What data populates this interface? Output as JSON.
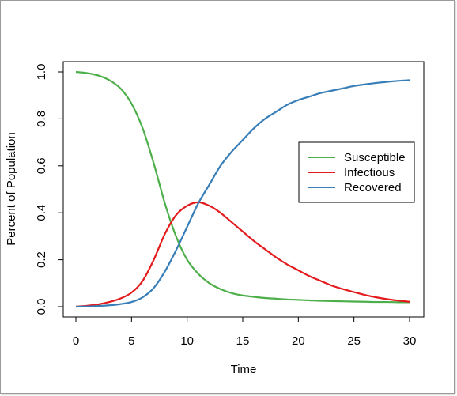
{
  "chart_data": {
    "type": "line",
    "xlabel": "Time",
    "ylabel": "Percent of Population",
    "xlim": [
      0,
      30
    ],
    "ylim": [
      0.0,
      1.0
    ],
    "x_ticks": [
      "0",
      "5",
      "10",
      "15",
      "20",
      "25",
      "30"
    ],
    "y_ticks": [
      "0.0",
      "0.2",
      "0.4",
      "0.6",
      "0.8",
      "1.0"
    ],
    "grid": false,
    "legend_position": "right",
    "x": [
      0,
      1,
      2,
      3,
      4,
      5,
      6,
      7,
      8,
      9,
      10,
      11,
      12,
      13,
      14,
      15,
      16,
      17,
      18,
      19,
      20,
      21,
      22,
      23,
      24,
      25,
      26,
      27,
      28,
      29,
      30
    ],
    "series": [
      {
        "name": "Susceptible",
        "color": "#4daf4a",
        "values": [
          1.0,
          0.995,
          0.985,
          0.965,
          0.93,
          0.865,
          0.76,
          0.61,
          0.44,
          0.3,
          0.2,
          0.14,
          0.1,
          0.075,
          0.058,
          0.048,
          0.042,
          0.037,
          0.034,
          0.031,
          0.029,
          0.027,
          0.025,
          0.024,
          0.023,
          0.022,
          0.021,
          0.02,
          0.02,
          0.019,
          0.019
        ]
      },
      {
        "name": "Infectious",
        "color": "#e41a1c",
        "values": [
          0.0,
          0.004,
          0.01,
          0.02,
          0.035,
          0.06,
          0.11,
          0.2,
          0.31,
          0.39,
          0.43,
          0.445,
          0.43,
          0.4,
          0.36,
          0.32,
          0.28,
          0.245,
          0.21,
          0.18,
          0.155,
          0.13,
          0.11,
          0.09,
          0.075,
          0.062,
          0.05,
          0.04,
          0.032,
          0.026,
          0.021
        ]
      },
      {
        "name": "Recovered",
        "color": "#377eb8",
        "values": [
          0.0,
          0.001,
          0.003,
          0.006,
          0.011,
          0.02,
          0.04,
          0.08,
          0.15,
          0.24,
          0.34,
          0.44,
          0.52,
          0.6,
          0.66,
          0.71,
          0.76,
          0.8,
          0.83,
          0.86,
          0.88,
          0.895,
          0.91,
          0.92,
          0.93,
          0.94,
          0.947,
          0.953,
          0.958,
          0.962,
          0.965
        ]
      }
    ]
  }
}
